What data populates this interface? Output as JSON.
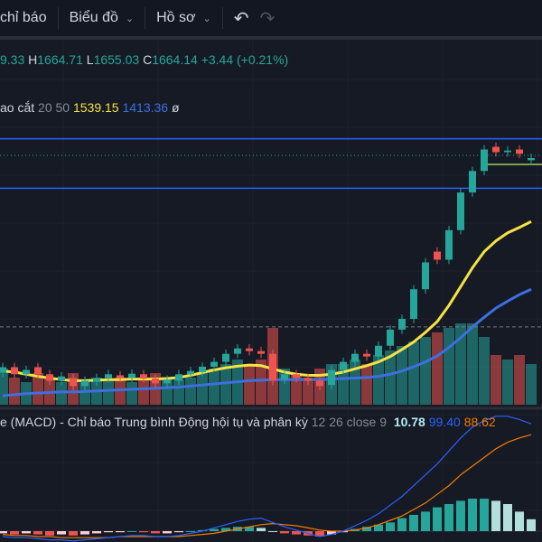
{
  "toolbar": {
    "indicators": "chỉ báo",
    "chart": "Biểu đồ",
    "profile": "Hồ sơ",
    "undo_icon": "undo-icon",
    "redo_icon": "redo-icon"
  },
  "ohlc": {
    "o": "9.33",
    "h_label": "H",
    "h": "1664.71",
    "l_label": "L",
    "l": "1655.03",
    "c_label": "C",
    "c": "1664.14",
    "change": "+3.44 (+0.21%)"
  },
  "ma": {
    "name": "ao cắt",
    "params": "20 50",
    "ma20": "1539.15",
    "ma50": "1413.36",
    "hide": "ø"
  },
  "macd": {
    "name": "e (MACD) - Chỉ báo Trung bình Động hội tụ và phân kỳ",
    "params": "12 26 close 9",
    "hist": "10.78",
    "macd": "99.40",
    "signal": "88.62"
  },
  "colors": {
    "up": "#26a69a",
    "down": "#ef5350",
    "ma20": "#f5e342",
    "ma50": "#3d6fe0",
    "macd": "#2962ff",
    "signal": "#f57c00",
    "bg": "#161a25"
  },
  "chart_data": {
    "type": "candlestick",
    "open": [
      1265,
      1275,
      1262,
      1275,
      1262,
      1250,
      1255,
      1240,
      1248,
      1255,
      1260,
      1255,
      1262,
      1254,
      1245,
      1250,
      1262,
      1266,
      1276,
      1285,
      1300,
      1310,
      1305,
      1300,
      1252,
      1262,
      1255,
      1250,
      1242,
      1270,
      1285,
      1300,
      1295,
      1315,
      1345,
      1365,
      1420,
      1490,
      1475,
      1530,
      1600,
      1640,
      1685,
      1675,
      1680,
      1660
    ],
    "close": [
      1275,
      1262,
      1270,
      1262,
      1250,
      1258,
      1240,
      1250,
      1255,
      1262,
      1255,
      1263,
      1254,
      1245,
      1252,
      1262,
      1268,
      1276,
      1285,
      1300,
      1310,
      1305,
      1300,
      1250,
      1262,
      1255,
      1250,
      1240,
      1270,
      1285,
      1300,
      1295,
      1315,
      1345,
      1365,
      1420,
      1470,
      1475,
      1530,
      1600,
      1640,
      1680,
      1675,
      1678,
      1672,
      1664
    ],
    "ma20": [
      1268,
      1266,
      1262,
      1258,
      1255,
      1252,
      1250,
      1250,
      1251,
      1252,
      1252,
      1253,
      1253,
      1253,
      1254,
      1256,
      1260,
      1265,
      1270,
      1274,
      1277,
      1279,
      1278,
      1272,
      1266,
      1262,
      1260,
      1260,
      1262,
      1266,
      1272,
      1278,
      1285,
      1295,
      1308,
      1322,
      1340,
      1360,
      1390,
      1425,
      1460,
      1490,
      1510,
      1525,
      1535,
      1546
    ],
    "ma50": [
      1222,
      1224,
      1226,
      1227,
      1228,
      1229,
      1229,
      1230,
      1231,
      1232,
      1233,
      1234,
      1235,
      1236,
      1237,
      1238,
      1240,
      1242,
      1244,
      1246,
      1248,
      1250,
      1251,
      1252,
      1252,
      1252,
      1252,
      1252,
      1253,
      1254,
      1255,
      1256,
      1258,
      1262,
      1268,
      1276,
      1285,
      1296,
      1312,
      1330,
      1350,
      1368,
      1385,
      1398,
      1410,
      1420
    ],
    "volume": [
      40,
      30,
      25,
      35,
      30,
      25,
      35,
      25,
      30,
      28,
      30,
      25,
      30,
      35,
      30,
      28,
      30,
      35,
      40,
      45,
      50,
      45,
      50,
      85,
      40,
      35,
      30,
      40,
      45,
      45,
      50,
      45,
      55,
      60,
      65,
      70,
      75,
      80,
      85,
      90,
      90,
      75,
      55,
      50,
      55,
      45
    ],
    "macd_hist": [
      -2,
      -3,
      -2,
      -3,
      -4,
      -3,
      -4,
      -3,
      -2,
      -1,
      -1,
      0,
      -1,
      -2,
      -2,
      -1,
      0,
      1,
      2,
      3,
      4,
      4,
      3,
      0,
      -2,
      -3,
      -4,
      -5,
      -3,
      -1,
      2,
      4,
      6,
      8,
      12,
      15,
      18,
      22,
      25,
      28,
      30,
      30,
      28,
      25,
      18,
      11
    ],
    "macd_line": [
      -5,
      -6,
      -6,
      -7,
      -8,
      -8,
      -9,
      -8,
      -7,
      -6,
      -5,
      -4,
      -4,
      -5,
      -5,
      -4,
      -2,
      0,
      3,
      6,
      9,
      11,
      12,
      8,
      4,
      1,
      -2,
      -5,
      -3,
      0,
      5,
      10,
      16,
      24,
      32,
      42,
      52,
      62,
      74,
      86,
      96,
      102,
      106,
      106,
      103,
      99
    ],
    "signal_line": [
      -3,
      -4,
      -4,
      -5,
      -5,
      -6,
      -6,
      -6,
      -6,
      -6,
      -5,
      -5,
      -5,
      -5,
      -5,
      -5,
      -4,
      -3,
      -2,
      0,
      2,
      4,
      6,
      7,
      6,
      5,
      3,
      1,
      0,
      0,
      1,
      3,
      6,
      10,
      14,
      20,
      26,
      34,
      42,
      52,
      60,
      68,
      76,
      82,
      86,
      89
    ],
    "levels": [
      1700,
      1608
    ],
    "dashed_level": 1350
  }
}
